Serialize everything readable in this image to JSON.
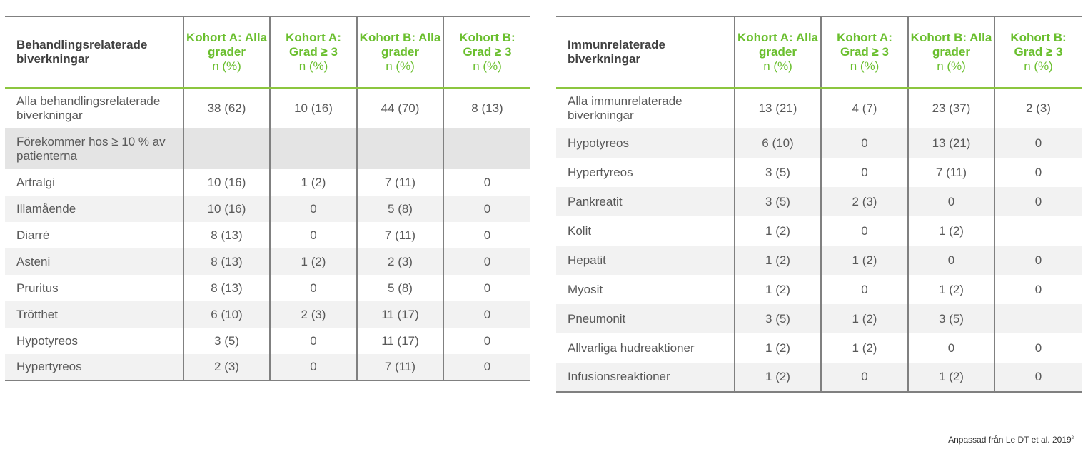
{
  "left_table": {
    "headers": [
      "Behandlingsrelaterade biverkningar",
      "Kohort A: Alla grader",
      "Kohort A: Grad ≥ 3",
      "Kohort B: Alla grader",
      "Kohort B: Grad ≥ 3"
    ],
    "header_unit": "n (%)",
    "rows": [
      {
        "label": "Alla behandlingsrelaterade biverkningar",
        "values": [
          "38 (62)",
          "10 (16)",
          "44 (70)",
          "8 (13)"
        ]
      },
      {
        "label": "Förekommer hos ≥ 10 % av patienterna",
        "values": [
          "",
          "",
          "",
          ""
        ]
      },
      {
        "label": "Artralgi",
        "values": [
          "10 (16)",
          "1 (2)",
          "7 (11)",
          "0"
        ]
      },
      {
        "label": "Illamående",
        "values": [
          "10 (16)",
          "0",
          "5 (8)",
          "0"
        ]
      },
      {
        "label": "Diarré",
        "values": [
          "8 (13)",
          "0",
          "7 (11)",
          "0"
        ]
      },
      {
        "label": "Asteni",
        "values": [
          "8 (13)",
          "1 (2)",
          "2 (3)",
          "0"
        ]
      },
      {
        "label": "Pruritus",
        "values": [
          "8 (13)",
          "0",
          "5 (8)",
          "0"
        ]
      },
      {
        "label": "Trötthet",
        "values": [
          "6 (10)",
          "2 (3)",
          "11 (17)",
          "0"
        ]
      },
      {
        "label": "Hypotyreos",
        "values": [
          "3 (5)",
          "0",
          "11 (17)",
          "0"
        ]
      },
      {
        "label": "Hypertyreos",
        "values": [
          "2 (3)",
          "0",
          "7 (11)",
          "0"
        ]
      }
    ]
  },
  "right_table": {
    "headers": [
      "Immunrelaterade biverkningar",
      "Kohort A: Alla grader",
      "Kohort A: Grad ≥ 3",
      "Kohort B: Alla grader",
      "Kohort B: Grad ≥ 3"
    ],
    "header_unit": "n (%)",
    "rows": [
      {
        "label": "Alla immunrelaterade biverkningar",
        "values": [
          "13 (21)",
          "4 (7)",
          "23 (37)",
          "2 (3)"
        ]
      },
      {
        "label": "Hypotyreos",
        "values": [
          "6 (10)",
          "0",
          "13 (21)",
          "0"
        ]
      },
      {
        "label": "Hypertyreos",
        "values": [
          "3 (5)",
          "0",
          "7 (11)",
          "0"
        ]
      },
      {
        "label": "Pankreatit",
        "values": [
          "3 (5)",
          "2 (3)",
          "0",
          "0"
        ]
      },
      {
        "label": "Kolit",
        "values": [
          "1 (2)",
          "0",
          "1 (2)",
          ""
        ]
      },
      {
        "label": "Hepatit",
        "values": [
          "1 (2)",
          "1 (2)",
          "0",
          "0"
        ]
      },
      {
        "label": "Myosit",
        "values": [
          "1 (2)",
          "0",
          "1 (2)",
          "0"
        ]
      },
      {
        "label": "Pneumonit",
        "values": [
          "3 (5)",
          "1 (2)",
          "3 (5)",
          ""
        ]
      },
      {
        "label": "Allvarliga hudreaktioner",
        "values": [
          "1 (2)",
          "1 (2)",
          "0",
          "0"
        ]
      },
      {
        "label": "Infusionsreaktioner",
        "values": [
          "1 (2)",
          "0",
          "1 (2)",
          "0"
        ]
      }
    ]
  },
  "source": {
    "text": "Anpassad från Le DT et al.  2019",
    "superscript": "2"
  },
  "colors": {
    "accent": "#6abf2e",
    "header_rule": "#8cc63f",
    "border": "#808080",
    "alt_row": "#f2f2f2",
    "section_row": "#e4e4e4"
  }
}
